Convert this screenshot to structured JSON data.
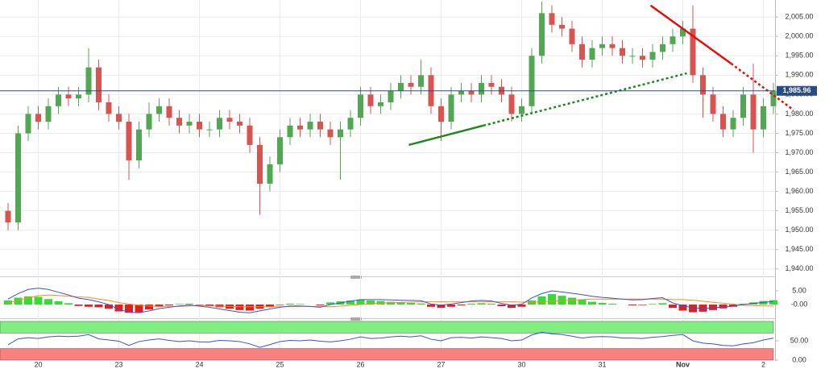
{
  "chart_data": [
    {
      "type": "candlestick",
      "categories": [
        null,
        null,
        null,
        "20",
        null,
        null,
        null,
        null,
        null,
        null,
        null,
        "23",
        null,
        null,
        null,
        null,
        null,
        null,
        null,
        "24",
        null,
        null,
        null,
        null,
        null,
        null,
        null,
        "25",
        null,
        null,
        null,
        null,
        null,
        null,
        null,
        "26",
        null,
        null,
        null,
        null,
        null,
        null,
        null,
        "27",
        null,
        null,
        null,
        null,
        null,
        null,
        null,
        "30",
        null,
        null,
        null,
        null,
        null,
        null,
        null,
        "31",
        null,
        null,
        null,
        null,
        null,
        null,
        null,
        "Nov",
        null,
        null,
        null,
        null,
        null,
        null,
        null,
        "2",
        null
      ],
      "open": [
        1955,
        1952,
        1975,
        1980,
        1978,
        1982,
        1985,
        1984,
        1985,
        1992,
        1983,
        1980,
        1978,
        1968,
        1976,
        1980,
        1982,
        1979,
        1977,
        1978,
        1976,
        1976,
        1979,
        1978,
        1977,
        1972,
        1962,
        1967,
        1974,
        1977,
        1976,
        1978,
        1976,
        1974,
        1976,
        1979,
        1985,
        1982,
        1983,
        1986,
        1988,
        1987,
        1990,
        1982,
        1978,
        1985,
        1986,
        1985,
        1988,
        1987,
        1985,
        1980,
        1982,
        1995,
        2006,
        2003,
        2002,
        1998,
        1994,
        1997,
        1998,
        1997,
        1995,
        1995,
        1994,
        1996,
        1998,
        2000,
        2002,
        1990,
        1985,
        1980,
        1976,
        1979,
        1985,
        1976,
        1982
      ],
      "high": [
        1957,
        1977,
        1982,
        1982,
        1984,
        1987,
        1987,
        1987,
        1997,
        1994,
        1985,
        1982,
        1980,
        1978,
        1983,
        1984,
        1984,
        1981,
        1980,
        1980,
        1978,
        1981,
        1981,
        1980,
        1979,
        1974,
        1969,
        1976,
        1979,
        1979,
        1980,
        1980,
        1978,
        1978,
        1981,
        1987,
        1987,
        1985,
        1988,
        1990,
        1990,
        1994,
        1992,
        1984,
        1987,
        1988,
        1988,
        1990,
        1990,
        1989,
        1987,
        1984,
        1997,
        2009,
        2008,
        2005,
        2004,
        2000,
        1999,
        2000,
        2000,
        1999,
        1997,
        1997,
        1998,
        2000,
        2002,
        2004,
        2008,
        1992,
        1987,
        1982,
        1981,
        1987,
        1993,
        1984,
        1988
      ],
      "low": [
        1950,
        1950,
        1973,
        1976,
        1976,
        1980,
        1982,
        1982,
        1983,
        1981,
        1978,
        1976,
        1963,
        1966,
        1974,
        1978,
        1977,
        1975,
        1975,
        1974,
        1974,
        1974,
        1976,
        1975,
        1970,
        1954,
        1960,
        1965,
        1972,
        1974,
        1974,
        1974,
        1972,
        1963,
        1974,
        1977,
        1980,
        1980,
        1981,
        1984,
        1985,
        1985,
        1980,
        1973,
        1976,
        1983,
        1983,
        1983,
        1985,
        1983,
        1978,
        1978,
        1980,
        1993,
        2001,
        2000,
        1996,
        1992,
        1992,
        1995,
        1995,
        1993,
        1993,
        1992,
        1992,
        1994,
        1996,
        1998,
        1988,
        1979,
        1978,
        1974,
        1974,
        1977,
        1970,
        1974,
        1980
      ],
      "close": [
        1952,
        1975,
        1980,
        1978,
        1982,
        1985,
        1984,
        1985,
        1992,
        1983,
        1980,
        1978,
        1968,
        1976,
        1980,
        1982,
        1979,
        1977,
        1978,
        1976,
        1976,
        1979,
        1978,
        1977,
        1972,
        1962,
        1967,
        1974,
        1977,
        1976,
        1978,
        1976,
        1974,
        1976,
        1979,
        1985,
        1982,
        1983,
        1986,
        1988,
        1987,
        1990,
        1982,
        1978,
        1985,
        1986,
        1985,
        1988,
        1987,
        1985,
        1980,
        1982,
        1995,
        2006,
        2003,
        2002,
        1998,
        1994,
        1997,
        1998,
        1997,
        1995,
        1995,
        1994,
        1996,
        1998,
        2000,
        2002,
        1990,
        1985,
        1980,
        1976,
        1979,
        1985,
        1976,
        1982,
        1986
      ],
      "up_color": "#52a852",
      "down_color": "#d9534f",
      "ylim": [
        1938.3,
        2009.4
      ],
      "yticks": [
        {
          "value": 1940,
          "label": "1,940.00"
        },
        {
          "value": 1945,
          "label": "1,945.00"
        },
        {
          "value": 1950,
          "label": "1,950.00"
        },
        {
          "value": 1955,
          "label": "1,955.00"
        },
        {
          "value": 1960,
          "label": "1,960.00"
        },
        {
          "value": 1965,
          "label": "1,965.00"
        },
        {
          "value": 1970,
          "label": "1,970.00"
        },
        {
          "value": 1975,
          "label": "1,975.00"
        },
        {
          "value": 1980,
          "label": "1,980.00"
        },
        {
          "value": 1985,
          "label": "1,985.00"
        },
        {
          "value": 1990,
          "label": "1,990.00"
        },
        {
          "value": 1995,
          "label": "1,995.00"
        },
        {
          "value": 2000,
          "label": "2,000.00"
        },
        {
          "value": 2005,
          "label": "2,005.00"
        }
      ],
      "grid": true,
      "last_price": {
        "value": 1985.96,
        "label": "1,985.96"
      },
      "last_price_color": "#2a4a8a",
      "trendlines": [
        {
          "color": "#1a8a1a",
          "dashed": false,
          "x": [
            39.8,
            47.2
          ],
          "y": [
            1972,
            1977
          ]
        },
        {
          "color": "#1a8a1a",
          "dashed": true,
          "x": [
            47.2,
            67.4
          ],
          "y": [
            1977,
            1990.5
          ]
        },
        {
          "color": "#e01010",
          "dashed": false,
          "x": [
            63.8,
            71.8
          ],
          "y": [
            2008,
            1993
          ]
        },
        {
          "color": "#e01010",
          "dashed": true,
          "x": [
            71.8,
            78
          ],
          "y": [
            1993,
            1981
          ]
        }
      ]
    },
    {
      "type": "macd",
      "histogram": [
        1.5,
        2.5,
        3,
        2.8,
        2,
        1.2,
        0.5,
        -0.5,
        -0.8,
        -1,
        -1.5,
        -2.5,
        -3,
        -2.8,
        -1.8,
        -0.8,
        -0.3,
        0.2,
        0.3,
        -0.2,
        -0.5,
        -1,
        -1.5,
        -2,
        -2.2,
        -1.5,
        -0.8,
        -0.2,
        0.3,
        0.2,
        0,
        -0.3,
        0.8,
        1.2,
        1.5,
        1.8,
        1.5,
        1.3,
        1,
        0.8,
        0.6,
        0.4,
        -0.8,
        -1.2,
        -0.8,
        -0.3,
        0.3,
        0.5,
        0.3,
        -0.6,
        -1.2,
        -0.8,
        1.5,
        3,
        3.8,
        3.2,
        2.5,
        1.8,
        1,
        0.6,
        0.3,
        0,
        -0.3,
        -0.2,
        0.2,
        0.5,
        -1.2,
        -2.2,
        -2.8,
        -2.6,
        -2,
        -1.4,
        -0.8,
        0.3,
        0.8,
        1.3,
        1.6
      ],
      "macd": [
        2,
        4,
        5.5,
        6,
        5.5,
        4.5,
        3.5,
        2.3,
        1.8,
        1,
        0,
        -1.8,
        -2.8,
        -3,
        -2.3,
        -1.5,
        -1,
        -0.5,
        -0.2,
        -0.6,
        -1,
        -1.6,
        -2.2,
        -2.8,
        -3,
        -2.3,
        -1.6,
        -1,
        -0.5,
        -0.5,
        -0.7,
        -1,
        0,
        0.6,
        1.2,
        1.8,
        1.8,
        1.8,
        1.7,
        1.6,
        1.5,
        1.4,
        0.2,
        -0.2,
        0.2,
        0.7,
        1.3,
        1.5,
        1.3,
        0.4,
        -0.2,
        0.1,
        2.4,
        4,
        5,
        4.6,
        4.1,
        3.6,
        3,
        2.6,
        2.3,
        2,
        1.7,
        1.8,
        2.2,
        2.5,
        0.6,
        -0.4,
        -1.2,
        -1.4,
        -1.2,
        -0.9,
        -0.6,
        0,
        0.4,
        0.8,
        1.1
      ],
      "signal": [
        0.5,
        1.5,
        2.5,
        3.2,
        3.5,
        3.3,
        3,
        2.8,
        2.6,
        2,
        1.5,
        0.7,
        0.2,
        -0.2,
        -0.5,
        -0.7,
        -0.7,
        -0.7,
        -0.5,
        -0.4,
        -0.5,
        -0.6,
        -0.7,
        -0.8,
        -0.8,
        -0.8,
        -0.8,
        -0.8,
        -0.8,
        -0.7,
        -0.7,
        -0.7,
        -0.8,
        -0.6,
        -0.3,
        0,
        0.3,
        0.5,
        0.7,
        0.8,
        0.9,
        1,
        1,
        1,
        1,
        1,
        1,
        1,
        1,
        1,
        1,
        0.9,
        0.9,
        1,
        1.2,
        1.4,
        1.6,
        1.8,
        2,
        2,
        2,
        2,
        2,
        2,
        2,
        2,
        1.8,
        1.8,
        1.6,
        1.2,
        0.8,
        0.5,
        0.2,
        -0.3,
        -0.4,
        -0.5,
        -0.5
      ],
      "positive_color": "#33dd33",
      "negative_color": "#e02020",
      "macd_color": "#3355dd",
      "signal_color": "#ff8c1a",
      "ylim": [
        -4.4,
        9.4
      ],
      "yticks": [
        {
          "value": 5,
          "label": "5.00"
        },
        {
          "value": 0,
          "label": "-0.00"
        }
      ]
    },
    {
      "type": "rsi",
      "values": [
        40,
        55,
        58,
        56,
        60,
        62,
        61,
        62,
        66,
        55,
        52,
        49,
        38,
        48,
        52,
        55,
        51,
        48,
        50,
        47,
        47,
        51,
        50,
        48,
        42,
        33,
        40,
        48,
        51,
        50,
        52,
        49,
        47,
        50,
        54,
        60,
        56,
        57,
        60,
        62,
        60,
        63,
        54,
        50,
        58,
        59,
        57,
        60,
        58,
        56,
        50,
        52,
        65,
        72,
        68,
        66,
        62,
        57,
        60,
        61,
        60,
        57,
        57,
        56,
        59,
        61,
        64,
        66,
        50,
        44,
        42,
        38,
        37,
        42,
        45,
        52,
        57
      ],
      "color": "#3355dd",
      "bands": [
        {
          "range": [
            70,
            100
          ],
          "color": "#7fef7f"
        },
        {
          "range": [
            0,
            30
          ],
          "color": "#f88080"
        }
      ],
      "ylim": [
        0,
        102
      ],
      "yticks": [
        {
          "value": 50,
          "label": "50.00"
        },
        {
          "value": 0,
          "label": "0.00"
        }
      ]
    }
  ]
}
